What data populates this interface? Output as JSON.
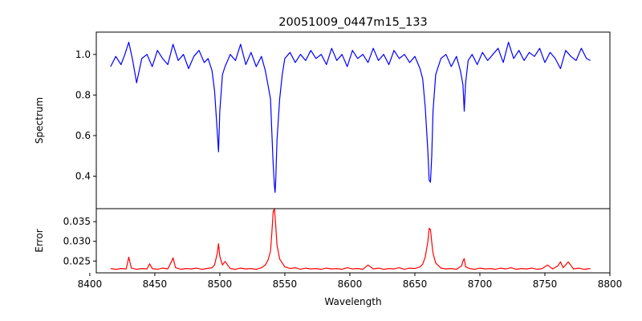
{
  "title": "20051009_0447m15_133",
  "colors": {
    "spectrum": "#0000ff",
    "error": "#ff0000",
    "axes": "#000000",
    "background": "#ffffff"
  },
  "chart_data": [
    {
      "type": "line",
      "name": "spectrum-panel",
      "ylabel": "Spectrum",
      "xlim": [
        8405,
        8800
      ],
      "ylim": [
        0.24,
        1.11
      ],
      "yticks": [
        0.4,
        0.6,
        0.8,
        1.0
      ],
      "ytick_labels": [
        "0.4",
        "0.6",
        "0.8",
        "1.0"
      ],
      "grid": false,
      "series": [
        {
          "color": "#0000ff",
          "x": [
            8416,
            8420,
            8424,
            8427,
            8430,
            8433,
            8436,
            8440,
            8444,
            8448,
            8452,
            8456,
            8460,
            8464,
            8468,
            8472,
            8476,
            8480,
            8484,
            8488,
            8491,
            8494,
            8496,
            8498,
            8499,
            8500,
            8502,
            8504,
            8508,
            8512,
            8516,
            8520,
            8524,
            8528,
            8532,
            8535,
            8537,
            8539,
            8540,
            8541,
            8542,
            8542.5,
            8543,
            8544,
            8546,
            8548,
            8550,
            8554,
            8558,
            8562,
            8566,
            8570,
            8574,
            8578,
            8582,
            8586,
            8590,
            8594,
            8598,
            8602,
            8606,
            8610,
            8614,
            8618,
            8622,
            8626,
            8630,
            8634,
            8638,
            8642,
            8646,
            8650,
            8654,
            8656,
            8658,
            8660,
            8661,
            8662,
            8663,
            8664,
            8666,
            8670,
            8674,
            8678,
            8682,
            8685,
            8687,
            8688,
            8689,
            8691,
            8694,
            8698,
            8702,
            8706,
            8710,
            8714,
            8718,
            8722,
            8726,
            8730,
            8734,
            8738,
            8742,
            8746,
            8750,
            8754,
            8758,
            8762,
            8766,
            8770,
            8774,
            8778,
            8782,
            8785
          ],
          "y": [
            0.94,
            0.99,
            0.95,
            1.0,
            1.06,
            0.97,
            0.86,
            0.98,
            1.0,
            0.94,
            1.02,
            0.98,
            0.95,
            1.05,
            0.97,
            1.0,
            0.93,
            0.99,
            1.02,
            0.96,
            0.98,
            0.92,
            0.82,
            0.62,
            0.52,
            0.72,
            0.9,
            0.94,
            1.0,
            0.97,
            1.05,
            0.95,
            1.01,
            0.94,
            0.99,
            0.92,
            0.85,
            0.78,
            0.62,
            0.46,
            0.35,
            0.32,
            0.38,
            0.58,
            0.78,
            0.9,
            0.98,
            1.01,
            0.96,
            1.0,
            0.97,
            1.02,
            0.98,
            1.0,
            0.95,
            1.03,
            0.97,
            1.0,
            0.94,
            1.02,
            0.98,
            1.0,
            0.96,
            1.03,
            0.97,
            1.0,
            0.95,
            1.02,
            0.98,
            1.0,
            0.96,
            0.99,
            0.93,
            0.88,
            0.74,
            0.52,
            0.38,
            0.37,
            0.5,
            0.72,
            0.9,
            0.98,
            1.0,
            0.94,
            0.99,
            0.92,
            0.85,
            0.72,
            0.86,
            0.97,
            1.0,
            0.95,
            1.01,
            0.97,
            1.0,
            1.03,
            0.96,
            1.06,
            0.98,
            1.02,
            0.97,
            1.01,
            0.99,
            1.03,
            0.96,
            1.01,
            0.98,
            0.93,
            1.02,
            0.99,
            0.97,
            1.03,
            0.98,
            0.97
          ]
        }
      ]
    },
    {
      "type": "line",
      "name": "error-panel",
      "xlabel": "Wavelength",
      "ylabel": "Error",
      "xlim": [
        8405,
        8800
      ],
      "ylim": [
        0.022,
        0.0383
      ],
      "xticks": [
        8400,
        8450,
        8500,
        8550,
        8600,
        8650,
        8700,
        8750,
        8800
      ],
      "xtick_labels": [
        "8400",
        "8450",
        "8500",
        "8550",
        "8600",
        "8650",
        "8700",
        "8750",
        "8800"
      ],
      "yticks": [
        0.025,
        0.03,
        0.035
      ],
      "ytick_labels": [
        "0.025",
        "0.030",
        "0.035"
      ],
      "grid": false,
      "series": [
        {
          "color": "#ff0000",
          "x": [
            8416,
            8420,
            8424,
            8428,
            8430,
            8432,
            8436,
            8440,
            8444,
            8446,
            8448,
            8452,
            8456,
            8460,
            8463,
            8464,
            8466,
            8470,
            8474,
            8478,
            8482,
            8486,
            8490,
            8494,
            8496,
            8498,
            8499,
            8500,
            8502,
            8504,
            8508,
            8512,
            8516,
            8520,
            8524,
            8528,
            8532,
            8535,
            8537,
            8539,
            8540,
            8541,
            8542,
            8543,
            8544,
            8546,
            8550,
            8554,
            8558,
            8562,
            8566,
            8570,
            8574,
            8578,
            8582,
            8586,
            8590,
            8594,
            8598,
            8602,
            8606,
            8610,
            8614,
            8618,
            8622,
            8626,
            8630,
            8634,
            8638,
            8642,
            8646,
            8650,
            8654,
            8656,
            8658,
            8660,
            8661,
            8662,
            8663,
            8664,
            8666,
            8670,
            8674,
            8678,
            8682,
            8686,
            8687,
            8688,
            8689,
            8692,
            8696,
            8700,
            8704,
            8708,
            8712,
            8716,
            8720,
            8724,
            8728,
            8732,
            8736,
            8740,
            8744,
            8748,
            8752,
            8756,
            8760,
            8762,
            8764,
            8768,
            8772,
            8776,
            8780,
            8785
          ],
          "y": [
            0.0231,
            0.0229,
            0.0231,
            0.023,
            0.026,
            0.0232,
            0.0229,
            0.0231,
            0.023,
            0.0243,
            0.0231,
            0.0229,
            0.0232,
            0.023,
            0.025,
            0.0258,
            0.0233,
            0.0229,
            0.0231,
            0.023,
            0.0232,
            0.0229,
            0.0231,
            0.0233,
            0.024,
            0.027,
            0.0294,
            0.0262,
            0.024,
            0.0249,
            0.0231,
            0.0229,
            0.0232,
            0.023,
            0.0231,
            0.0229,
            0.0233,
            0.024,
            0.0252,
            0.0275,
            0.032,
            0.0375,
            0.0383,
            0.034,
            0.029,
            0.0255,
            0.0235,
            0.0231,
            0.0233,
            0.0229,
            0.0232,
            0.023,
            0.0231,
            0.0229,
            0.0232,
            0.023,
            0.0231,
            0.0229,
            0.0233,
            0.023,
            0.0231,
            0.0229,
            0.024,
            0.023,
            0.0232,
            0.0229,
            0.0231,
            0.023,
            0.0233,
            0.0229,
            0.0232,
            0.0231,
            0.0235,
            0.0242,
            0.026,
            0.03,
            0.0333,
            0.033,
            0.0298,
            0.027,
            0.0245,
            0.0232,
            0.023,
            0.0231,
            0.0229,
            0.0238,
            0.025,
            0.0256,
            0.0235,
            0.0231,
            0.0229,
            0.0232,
            0.023,
            0.0231,
            0.0229,
            0.0232,
            0.023,
            0.0233,
            0.0229,
            0.0231,
            0.023,
            0.0232,
            0.0229,
            0.0231,
            0.024,
            0.023,
            0.0238,
            0.0248,
            0.0233,
            0.0248,
            0.023,
            0.0232,
            0.0229,
            0.0231
          ]
        }
      ]
    }
  ]
}
